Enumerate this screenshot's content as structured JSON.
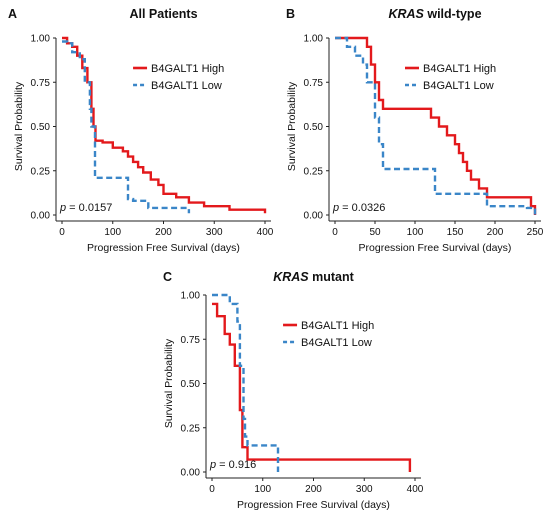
{
  "colors": {
    "high": "#e3191c",
    "low": "#3a86c8"
  },
  "chart_data": [
    {
      "type": "line",
      "letter": "A",
      "title": "All Patients",
      "title_italic_prefix": "",
      "xlabel": "Progression Free Survival (days)",
      "ylabel": "Survival Probability",
      "xlim": [
        0,
        400
      ],
      "ylim": [
        0,
        1
      ],
      "xticks": [
        0,
        100,
        200,
        300,
        400
      ],
      "yticks": [
        "0.00",
        "0.25",
        "0.50",
        "0.75",
        "1.00"
      ],
      "pvalue_prefix": "p",
      "pvalue": "= 0.0157",
      "legend_position": "top-right",
      "series": [
        {
          "name": "B4GALT1 High",
          "style": "solid",
          "x": [
            0,
            10,
            20,
            30,
            40,
            50,
            58,
            62,
            66,
            80,
            100,
            120,
            130,
            140,
            150,
            160,
            175,
            190,
            200,
            225,
            250,
            280,
            300,
            330,
            360,
            400
          ],
          "y": [
            1.0,
            0.97,
            0.95,
            0.9,
            0.83,
            0.75,
            0.6,
            0.5,
            0.42,
            0.41,
            0.38,
            0.36,
            0.33,
            0.3,
            0.27,
            0.24,
            0.2,
            0.17,
            0.12,
            0.1,
            0.07,
            0.05,
            0.05,
            0.03,
            0.03,
            0.01
          ]
        },
        {
          "name": "B4GALT1 Low",
          "style": "dashed",
          "x": [
            0,
            10,
            20,
            35,
            45,
            55,
            58,
            65,
            85,
            95,
            130,
            140,
            170,
            200,
            250
          ],
          "y": [
            0.98,
            0.97,
            0.92,
            0.88,
            0.75,
            0.6,
            0.5,
            0.21,
            0.21,
            0.21,
            0.09,
            0.08,
            0.04,
            0.04,
            0.01
          ]
        }
      ]
    },
    {
      "type": "line",
      "letter": "B",
      "title": "wild-type",
      "title_italic_prefix": "KRAS",
      "xlabel": "Progression Free Survival (days)",
      "ylabel": "Survival Probability",
      "xlim": [
        0,
        250
      ],
      "ylim": [
        0,
        1
      ],
      "xticks": [
        0,
        50,
        100,
        150,
        200,
        250
      ],
      "yticks": [
        "0.00",
        "0.25",
        "0.50",
        "0.75",
        "1.00"
      ],
      "pvalue_prefix": "p",
      "pvalue": "= 0.0326",
      "legend_position": "top-right",
      "series": [
        {
          "name": "B4GALT1 High",
          "style": "solid",
          "x": [
            0,
            10,
            40,
            45,
            50,
            55,
            60,
            65,
            120,
            130,
            140,
            150,
            155,
            160,
            165,
            170,
            180,
            190,
            195,
            200,
            210,
            245,
            250
          ],
          "y": [
            1.0,
            1.0,
            0.95,
            0.85,
            0.75,
            0.65,
            0.6,
            0.6,
            0.55,
            0.5,
            0.45,
            0.4,
            0.35,
            0.3,
            0.25,
            0.2,
            0.15,
            0.1,
            0.1,
            0.1,
            0.1,
            0.05,
            0.0
          ]
        },
        {
          "name": "B4GALT1 Low",
          "style": "dashed",
          "x": [
            0,
            15,
            25,
            35,
            40,
            50,
            55,
            60,
            90,
            120,
            125,
            160,
            190,
            200,
            240,
            250
          ],
          "y": [
            1.0,
            0.95,
            0.9,
            0.85,
            0.75,
            0.55,
            0.4,
            0.26,
            0.26,
            0.26,
            0.12,
            0.12,
            0.05,
            0.05,
            0.04,
            0.0
          ]
        }
      ]
    },
    {
      "type": "line",
      "letter": "C",
      "title": "mutant",
      "title_italic_prefix": "KRAS",
      "xlabel": "Progression Free Survival (days)",
      "ylabel": "Survival Probability",
      "xlim": [
        0,
        400
      ],
      "ylim": [
        0,
        1
      ],
      "xticks": [
        0,
        100,
        200,
        300,
        400
      ],
      "yticks": [
        "0.00",
        "0.25",
        "0.50",
        "0.75",
        "1.00"
      ],
      "pvalue_prefix": "p",
      "pvalue": "= 0.916",
      "legend_position": "top-right",
      "series": [
        {
          "name": "B4GALT1 High",
          "style": "solid",
          "x": [
            0,
            10,
            25,
            35,
            45,
            55,
            60,
            70,
            390,
            390
          ],
          "y": [
            0.95,
            0.88,
            0.78,
            0.72,
            0.6,
            0.35,
            0.14,
            0.07,
            0.07,
            0.0
          ]
        },
        {
          "name": "B4GALT1 Low",
          "style": "dashed",
          "x": [
            0,
            35,
            50,
            55,
            62,
            65,
            70,
            100,
            130,
            130
          ],
          "y": [
            1.0,
            0.95,
            0.85,
            0.6,
            0.3,
            0.2,
            0.15,
            0.15,
            0.07,
            0.0
          ]
        }
      ]
    }
  ]
}
